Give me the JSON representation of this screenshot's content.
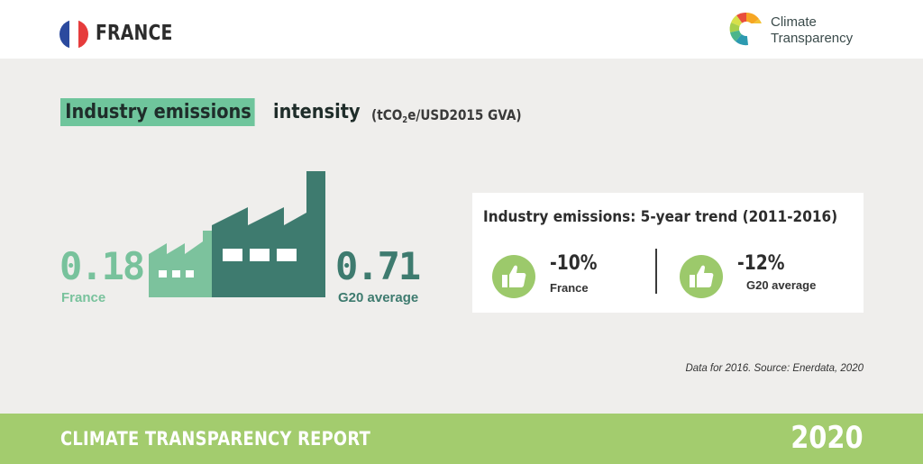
{
  "header": {
    "country": "FRANCE",
    "flag_colors": [
      "#2b4a9e",
      "#ffffff",
      "#e63c3c"
    ],
    "brand_line1": "Climate",
    "brand_line2": "Transparency",
    "logo_icon": "climate-transparency-logo"
  },
  "title": {
    "highlight": "Industry emissions",
    "rest": " intensity",
    "unit_pre": "(tCO",
    "unit_sub": "2",
    "unit_post": "e/USD2015 GVA)"
  },
  "intensity": {
    "france_value": "0.18",
    "france_label": "France",
    "g20_value": "0.71",
    "g20_label": "G20 average",
    "factory_icon": "factory-icon"
  },
  "trend": {
    "title": "Industry emissions: 5-year trend (2011-2016)",
    "items": [
      {
        "value": "-10%",
        "label": "France",
        "icon": "thumbs-up-icon"
      },
      {
        "value": "-12%",
        "label": "G20 average",
        "icon": "thumbs-up-icon"
      }
    ]
  },
  "source": "Data for 2016. Source: Enerdata, 2020",
  "footer": {
    "report": "CLIMATE TRANSPARENCY REPORT",
    "year": "2020"
  },
  "colors": {
    "accent_green": "#6fc59c",
    "dark_teal": "#3e7b6f",
    "footer_green": "#a3cc6e",
    "thumb_green": "#9cc96b"
  }
}
